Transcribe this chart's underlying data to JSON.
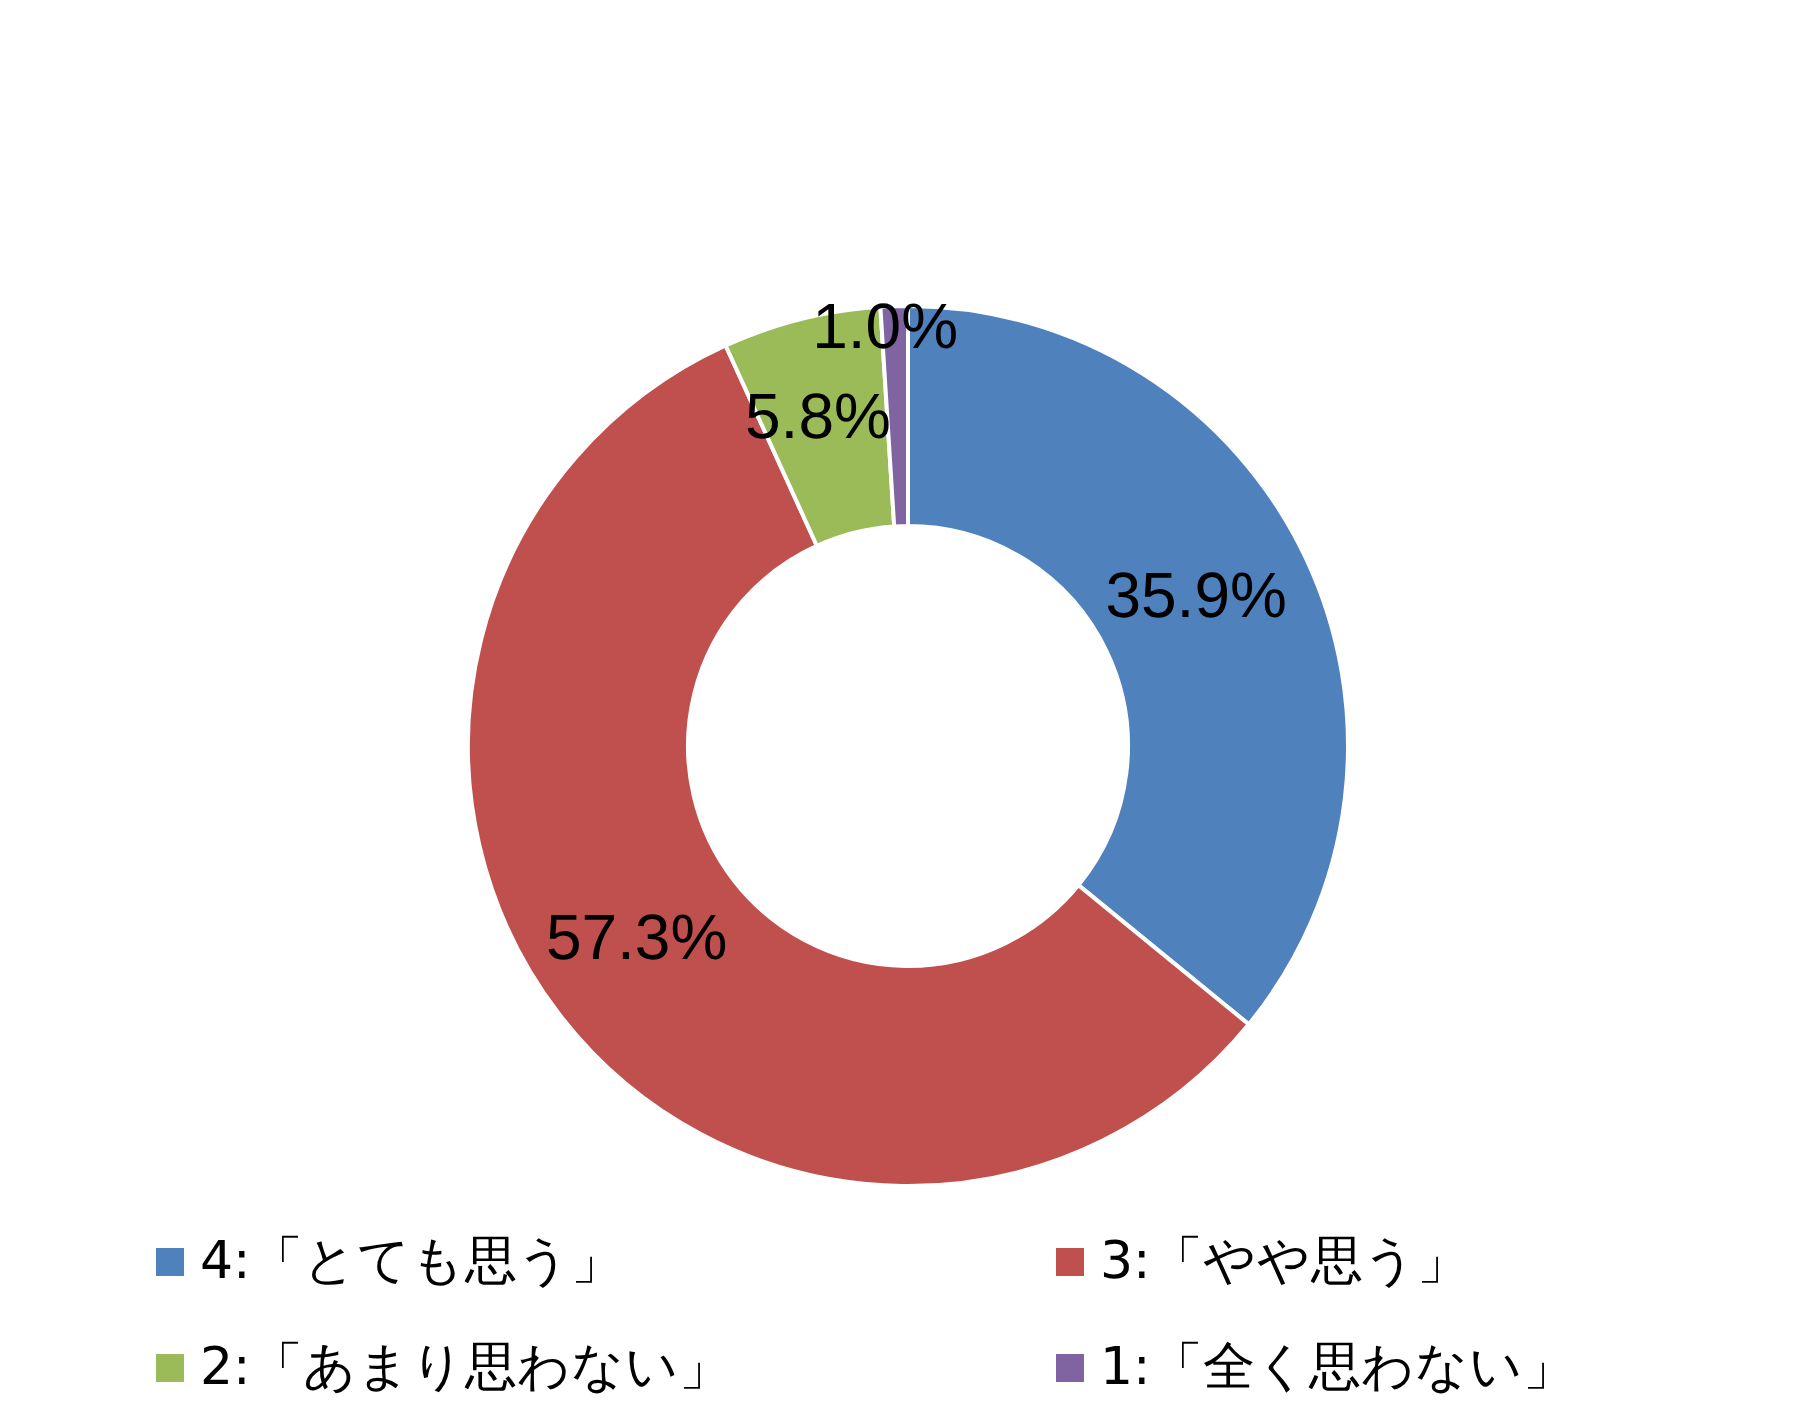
{
  "chart_data": {
    "type": "donut",
    "categories": [
      "4:「とても思う」",
      "3:「やや思う」",
      "2:「あまり思わない」",
      "1:「全く思わない」"
    ],
    "values": [
      35.9,
      57.3,
      5.8,
      1.0
    ],
    "colors": [
      "#4f81bd",
      "#c0504d",
      "#9bbb59",
      "#8064a2"
    ],
    "value_labels": [
      "35.9%",
      "57.3%",
      "5.8%",
      "1.0%"
    ],
    "legend": "bottom"
  }
}
